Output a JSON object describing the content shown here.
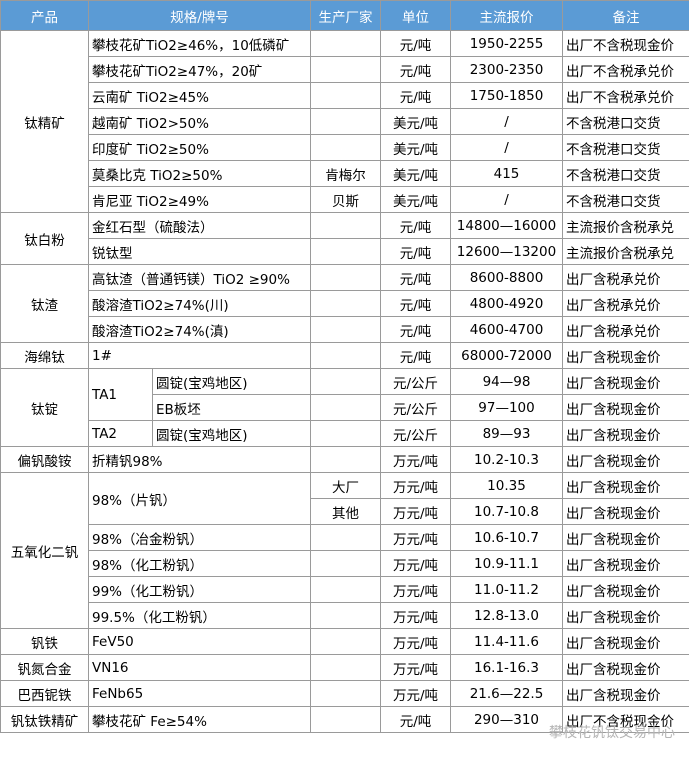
{
  "header": [
    "产品",
    "规格/牌号",
    "生产厂家",
    "单位",
    "主流报价",
    "备注"
  ],
  "rows": [
    {
      "product": "钛精矿",
      "spec": "攀枝花矿TiO2≥46%，10低磷矿",
      "unit": "元/吨",
      "price": "1950-2255",
      "note": "出厂不含税现金价"
    },
    {
      "spec": "攀枝花矿TiO2≥47%，20矿",
      "unit": "元/吨",
      "price": "2300-2350",
      "note": "出厂不含税承兑价"
    },
    {
      "spec": "云南矿 TiO2≥45%",
      "unit": "元/吨",
      "price": "1750-1850",
      "note": "出厂不含税承兑价"
    },
    {
      "spec": "越南矿 TiO2>50%",
      "unit": "美元/吨",
      "price": "/",
      "note": "不含税港口交货"
    },
    {
      "spec": "印度矿 TiO2≥50%",
      "unit": "美元/吨",
      "price": "/",
      "note": "不含税港口交货"
    },
    {
      "spec": "莫桑比克 TiO2≥50%",
      "maker": "肯梅尔",
      "unit": "美元/吨",
      "price": "415",
      "note": "不含税港口交货"
    },
    {
      "spec": "肯尼亚 TiO2≥49%",
      "maker": "贝斯",
      "unit": "美元/吨",
      "price": "/",
      "note": "不含税港口交货"
    },
    {
      "product": "钛白粉",
      "spec": "金红石型（硫酸法）",
      "unit": "元/吨",
      "price": "14800—16000",
      "note": "主流报价含税承兑"
    },
    {
      "spec": "锐钛型",
      "unit": "元/吨",
      "price": "12600—13200",
      "note": "主流报价含税承兑"
    },
    {
      "product": "钛渣",
      "spec": "高钛渣（普通钙镁）TiO2 ≥90%",
      "unit": "元/吨",
      "price": "8600-8800",
      "note": "出厂含税承兑价"
    },
    {
      "spec": "酸溶渣TiO2≥74%(川)",
      "unit": "元/吨",
      "price": "4800-4920",
      "note": "出厂含税承兑价"
    },
    {
      "spec": "酸溶渣TiO2≥74%(滇)",
      "unit": "元/吨",
      "price": "4600-4700",
      "note": "出厂含税承兑价"
    },
    {
      "product": "海绵钛",
      "spec": "1#",
      "unit": "元/吨",
      "price": "68000-72000",
      "note": "出厂含税现金价"
    },
    {
      "product": "钛锭",
      "grade": "TA1",
      "spec": "圆锭(宝鸡地区)",
      "unit": "元/公斤",
      "price": "94—98",
      "note": "出厂含税现金价"
    },
    {
      "spec": "EB板坯",
      "unit": "元/公斤",
      "price": "97—100",
      "note": "出厂含税现金价"
    },
    {
      "grade": "TA2",
      "spec": "圆锭(宝鸡地区)",
      "unit": "元/公斤",
      "price": "89—93",
      "note": "出厂含税现金价"
    },
    {
      "product": "偏钒酸铵",
      "spec": "折精钒98%",
      "unit": "万元/吨",
      "price": "10.2-10.3",
      "note": "出厂含税现金价"
    },
    {
      "product": "五氧化二钒",
      "spec": "98%（片钒）",
      "maker": "大厂",
      "unit": "万元/吨",
      "price": "10.35",
      "note": "出厂含税现金价"
    },
    {
      "maker": "其他",
      "unit": "万元/吨",
      "price": "10.7-10.8",
      "note": "出厂含税现金价"
    },
    {
      "spec": "98%（冶金粉钒）",
      "unit": "万元/吨",
      "price": "10.6-10.7",
      "note": "出厂含税现金价"
    },
    {
      "spec": "98%（化工粉钒）",
      "unit": "万元/吨",
      "price": "10.9-11.1",
      "note": "出厂含税现金价"
    },
    {
      "spec": "99%（化工粉钒）",
      "unit": "万元/吨",
      "price": "11.0-11.2",
      "note": "出厂含税现金价"
    },
    {
      "spec": "99.5%（化工粉钒）",
      "unit": "万元/吨",
      "price": "12.8-13.0",
      "note": "出厂含税现金价"
    },
    {
      "product": "钒铁",
      "spec": "FeV50",
      "unit": "万元/吨",
      "price": "11.4-11.6",
      "note": "出厂含税现金价"
    },
    {
      "product": "钒氮合金",
      "spec": "VN16",
      "unit": "万元/吨",
      "price": "16.1-16.3",
      "note": "出厂含税现金价"
    },
    {
      "product": "巴西铌铁",
      "spec": "FeNb65",
      "unit": "万元/吨",
      "price": "21.6—22.5",
      "note": "出厂含税现金价"
    },
    {
      "product": "钒钛铁精矿",
      "spec": "攀枝花矿 Fe≥54%",
      "unit": "元/吨",
      "price": "290—310",
      "note": "出厂不含税现金价"
    }
  ],
  "watermark": "攀枝花钒钛交易中心"
}
